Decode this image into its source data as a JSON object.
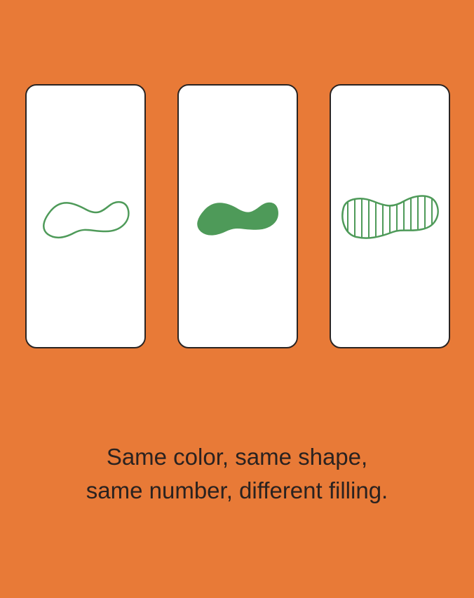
{
  "cards": [
    {
      "shape": "squiggle",
      "color": "#4E9A59",
      "filling": "outline"
    },
    {
      "shape": "squiggle",
      "color": "#4E9A59",
      "filling": "solid"
    },
    {
      "shape": "squiggle",
      "color": "#4E9A59",
      "filling": "striped"
    }
  ],
  "caption": {
    "line1": "Same color, same shape,",
    "line2": "same number, different filling."
  },
  "colors": {
    "background": "#E87A37",
    "card": "#FFFFFF",
    "card_border": "#2A2422",
    "shape": "#4E9A59",
    "text": "#2A2220"
  }
}
